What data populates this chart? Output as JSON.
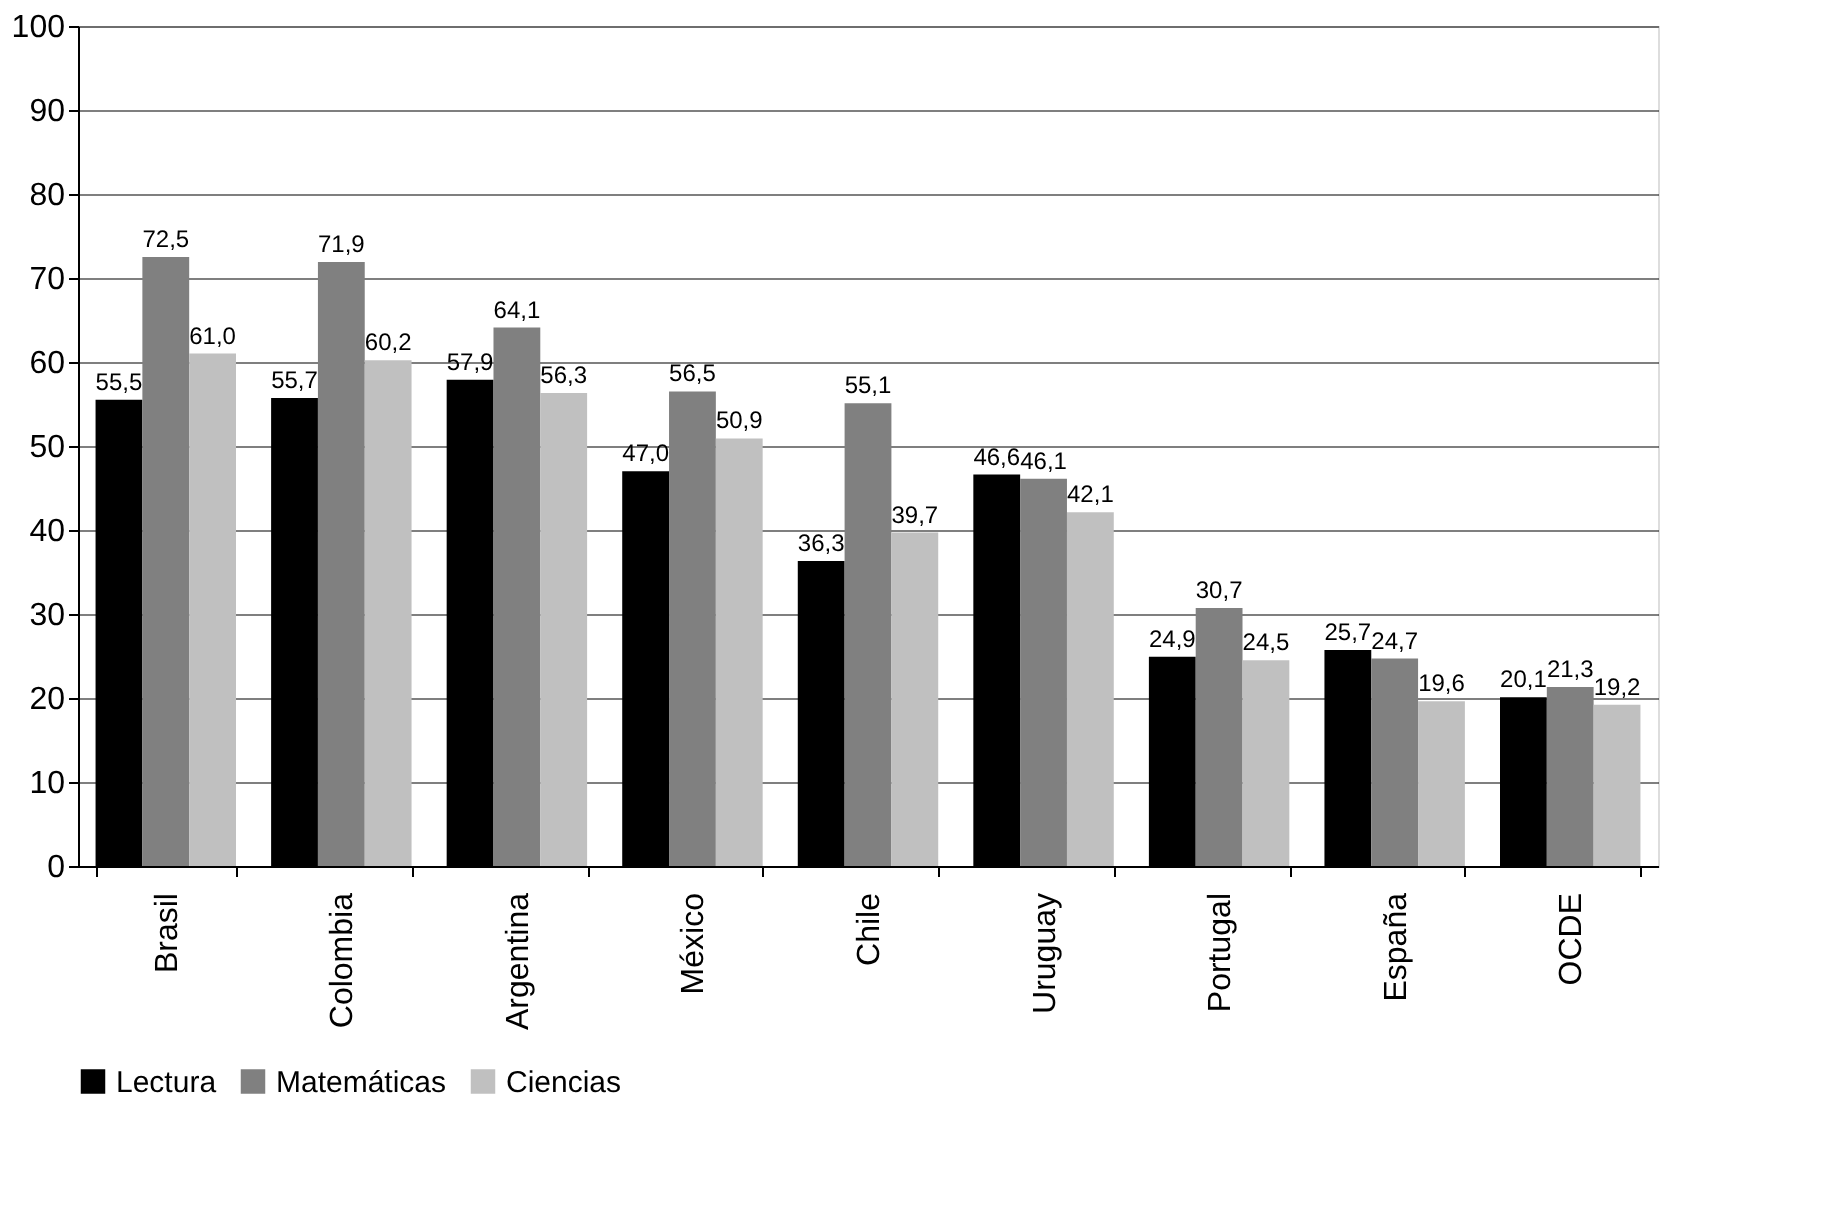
{
  "chart_data": {
    "type": "bar",
    "categories": [
      "Brasil",
      "Colombia",
      "Argentina",
      "México",
      "Chile",
      "Uruguay",
      "Portugal",
      "España",
      "OCDE"
    ],
    "series": [
      {
        "name": "Lectura",
        "color": "#000000",
        "values": [
          55.5,
          55.7,
          57.9,
          47.0,
          36.3,
          46.6,
          24.9,
          25.7,
          20.1
        ],
        "value_labels": [
          "55,5",
          "55,7",
          "57,9",
          "47,0",
          "36,3",
          "46,6",
          "24,9",
          "25,7",
          "20,1"
        ]
      },
      {
        "name": "Matemáticas",
        "color": "#808080",
        "values": [
          72.5,
          71.9,
          64.1,
          56.5,
          55.1,
          46.1,
          30.7,
          24.7,
          21.3
        ],
        "value_labels": [
          "72,5",
          "71,9",
          "64,1",
          "56,5",
          "55,1",
          "46,1",
          "30,7",
          "24,7",
          "21,3"
        ]
      },
      {
        "name": "Ciencias",
        "color": "#c0c0c0",
        "values": [
          61.0,
          60.2,
          56.3,
          50.9,
          39.7,
          42.1,
          24.5,
          19.6,
          19.2
        ],
        "value_labels": [
          "61,0",
          "60,2",
          "56,3",
          "50,9",
          "39,7",
          "42,1",
          "24,5",
          "19,6",
          "19,2"
        ]
      }
    ],
    "ylim": [
      0,
      100
    ],
    "yticks": [
      0,
      10,
      20,
      30,
      40,
      50,
      60,
      70,
      80,
      90,
      100
    ],
    "grid": "y",
    "legend": "bottom"
  }
}
